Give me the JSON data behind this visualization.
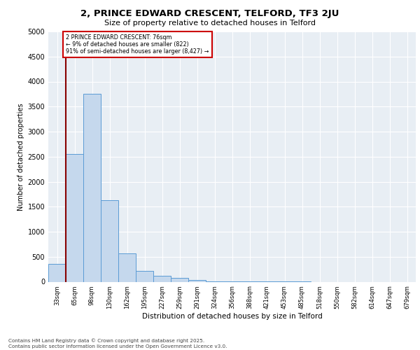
{
  "title1": "2, PRINCE EDWARD CRESCENT, TELFORD, TF3 2JU",
  "title2": "Size of property relative to detached houses in Telford",
  "xlabel": "Distribution of detached houses by size in Telford",
  "ylabel": "Number of detached properties",
  "categories": [
    "33sqm",
    "65sqm",
    "98sqm",
    "130sqm",
    "162sqm",
    "195sqm",
    "227sqm",
    "259sqm",
    "291sqm",
    "324sqm",
    "356sqm",
    "388sqm",
    "421sqm",
    "453sqm",
    "485sqm",
    "518sqm",
    "550sqm",
    "582sqm",
    "614sqm",
    "647sqm",
    "679sqm"
  ],
  "values": [
    350,
    2550,
    3750,
    1625,
    560,
    210,
    120,
    75,
    30,
    10,
    5,
    3,
    2,
    1,
    1,
    0,
    0,
    0,
    0,
    0,
    0
  ],
  "bar_color": "#c5d8ed",
  "bar_edge_color": "#5b9bd5",
  "bg_color": "#e8eef4",
  "vline_color": "#880000",
  "annotation_text": "2 PRINCE EDWARD CRESCENT: 76sqm\n← 9% of detached houses are smaller (822)\n91% of semi-detached houses are larger (8,427) →",
  "annotation_box_color": "#cc0000",
  "ylim": [
    0,
    5000
  ],
  "yticks": [
    0,
    500,
    1000,
    1500,
    2000,
    2500,
    3000,
    3500,
    4000,
    4500,
    5000
  ],
  "footer1": "Contains HM Land Registry data © Crown copyright and database right 2025.",
  "footer2": "Contains public sector information licensed under the Open Government Licence v3.0."
}
